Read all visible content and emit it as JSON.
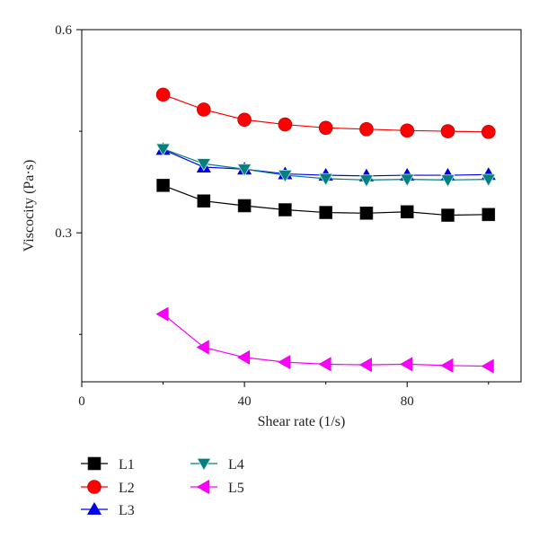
{
  "chart_data": {
    "type": "line",
    "xlabel": "Shear rate (1/s)",
    "ylabel": "Viscocity (Pa·s)",
    "xlim": [
      0,
      108
    ],
    "ylim": [
      0.08,
      0.6
    ],
    "xticks": [
      0,
      40,
      80
    ],
    "xminor": [
      20,
      60,
      100
    ],
    "yticks": [
      0.3,
      0.6
    ],
    "yminor": [
      0.15,
      0.45
    ],
    "legend_position": "below-left",
    "series": [
      {
        "name": "L1",
        "color": "#000000",
        "marker": "square",
        "x": [
          20,
          30,
          40,
          50,
          60,
          70,
          80,
          90,
          100
        ],
        "y": [
          0.37,
          0.347,
          0.34,
          0.334,
          0.33,
          0.329,
          0.331,
          0.326,
          0.327
        ]
      },
      {
        "name": "L2",
        "color": "#ff0000",
        "marker": "circle",
        "x": [
          20,
          30,
          40,
          50,
          60,
          70,
          80,
          90,
          100
        ],
        "y": [
          0.504,
          0.482,
          0.467,
          0.46,
          0.455,
          0.453,
          0.451,
          0.45,
          0.449
        ]
      },
      {
        "name": "L3",
        "color": "#0000ee",
        "marker": "triangle-up",
        "x": [
          20,
          30,
          40,
          50,
          60,
          70,
          80,
          90,
          100
        ],
        "y": [
          0.423,
          0.397,
          0.394,
          0.387,
          0.385,
          0.384,
          0.385,
          0.385,
          0.386
        ]
      },
      {
        "name": "L4",
        "color": "#008080",
        "marker": "triangle-down",
        "x": [
          20,
          30,
          40,
          50,
          60,
          70,
          80,
          90,
          100
        ],
        "y": [
          0.424,
          0.402,
          0.394,
          0.385,
          0.38,
          0.378,
          0.379,
          0.378,
          0.379
        ]
      },
      {
        "name": "L5",
        "color": "#ff00ff",
        "marker": "triangle-left",
        "x": [
          20,
          30,
          40,
          50,
          60,
          70,
          80,
          90,
          100
        ],
        "y": [
          0.18,
          0.131,
          0.116,
          0.109,
          0.106,
          0.105,
          0.106,
          0.104,
          0.103
        ]
      }
    ]
  }
}
